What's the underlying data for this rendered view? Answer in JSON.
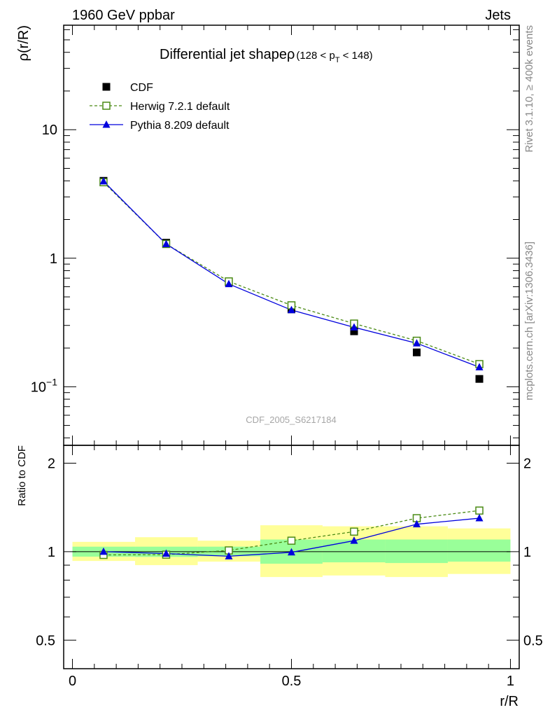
{
  "header": {
    "left": "1960 GeV ppbar",
    "right": "Jets"
  },
  "side_labels": {
    "rivet": "Rivet 3.1.10, ≥ 400k events",
    "mcplots": "mcplots.cern.ch [arXiv:1306.3436]"
  },
  "chart_data": [
    {
      "type": "line",
      "title_main": "Differential jet shapeρ",
      "title_sub": "(128 < p",
      "title_sub_T": "T",
      "title_sub_end": " < 148)",
      "ylabel": "ρ(r/R)",
      "xlabel": "r/R",
      "yscale": "log",
      "ylim": [
        0.035,
        65
      ],
      "xlim": [
        -0.02,
        1.02
      ],
      "y_ticks": [
        {
          "value": 0.1,
          "base": "10",
          "exp": "−1"
        },
        {
          "value": 1,
          "label": "1"
        },
        {
          "value": 10,
          "label": "10"
        }
      ],
      "watermark": "CDF_2005_S6217184",
      "x": [
        0.071,
        0.214,
        0.357,
        0.5,
        0.643,
        0.786,
        0.929
      ],
      "series": [
        {
          "name": "CDF",
          "style": "data",
          "color": "#000000",
          "values": [
            4.0,
            1.32,
            0.65,
            0.4,
            0.27,
            0.185,
            0.115
          ]
        },
        {
          "name": "Herwig 7.2.1 default",
          "style": "dashed-open-square",
          "color": "#4a8a14",
          "values": [
            3.9,
            1.29,
            0.66,
            0.43,
            0.31,
            0.228,
            0.15
          ]
        },
        {
          "name": "Pythia 8.209 default",
          "style": "solid-triangle",
          "color": "#0000dd",
          "values": [
            3.97,
            1.29,
            0.63,
            0.395,
            0.29,
            0.218,
            0.142
          ]
        }
      ]
    },
    {
      "type": "line",
      "ylabel": "Ratio to CDF",
      "yscale": "log",
      "ylim": [
        0.4,
        2.3
      ],
      "xlim": [
        -0.02,
        1.02
      ],
      "y_tick_labels": [
        {
          "value": 0.5,
          "label": "0.5"
        },
        {
          "value": 1,
          "label": "1"
        },
        {
          "value": 2,
          "label": "2"
        }
      ],
      "x_tick_labels": [
        {
          "value": 0,
          "label": "0"
        },
        {
          "value": 0.5,
          "label": "0.5"
        },
        {
          "value": 1,
          "label": "1"
        }
      ],
      "bands": [
        {
          "x0": 0.0,
          "x1": 0.143,
          "inner": [
            0.962,
            1.04
          ],
          "outer": [
            0.93,
            1.08
          ]
        },
        {
          "x0": 0.143,
          "x1": 0.286,
          "inner": [
            0.96,
            1.04
          ],
          "outer": [
            0.9,
            1.12
          ]
        },
        {
          "x0": 0.286,
          "x1": 0.429,
          "inner": [
            0.965,
            1.04
          ],
          "outer": [
            0.925,
            1.09
          ]
        },
        {
          "x0": 0.429,
          "x1": 0.571,
          "inner": [
            0.91,
            1.1
          ],
          "outer": [
            0.82,
            1.23
          ]
        },
        {
          "x0": 0.571,
          "x1": 0.714,
          "inner": [
            0.92,
            1.1
          ],
          "outer": [
            0.83,
            1.22
          ]
        },
        {
          "x0": 0.714,
          "x1": 0.857,
          "inner": [
            0.915,
            1.1
          ],
          "outer": [
            0.82,
            1.22
          ]
        },
        {
          "x0": 0.857,
          "x1": 1.0,
          "inner": [
            0.925,
            1.1
          ],
          "outer": [
            0.84,
            1.2
          ]
        }
      ],
      "x": [
        0.071,
        0.214,
        0.357,
        0.5,
        0.643,
        0.786,
        0.929
      ],
      "series": [
        {
          "name": "Herwig 7.2.1 default",
          "style": "dashed-open-square",
          "color": "#4a8a14",
          "values": [
            0.975,
            0.977,
            1.01,
            1.09,
            1.17,
            1.3,
            1.38
          ]
        },
        {
          "name": "Pythia 8.209 default",
          "style": "solid-triangle",
          "color": "#0000dd",
          "values": [
            1.0,
            0.985,
            0.965,
            0.995,
            1.09,
            1.24,
            1.3
          ]
        }
      ]
    }
  ]
}
